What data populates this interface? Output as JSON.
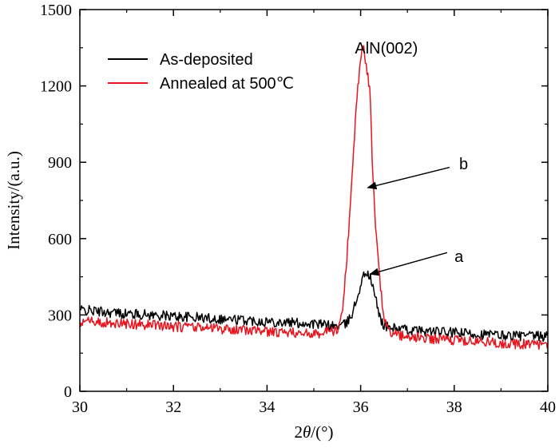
{
  "chart_data": {
    "type": "line",
    "title": "",
    "xlabel": {
      "prefix": "2",
      "theta": "θ",
      "suffix": "/(°)"
    },
    "ylabel": "Intensity/(a.u.)",
    "xlim": [
      30,
      40
    ],
    "ylim": [
      0,
      1500
    ],
    "xticks": [
      30,
      32,
      34,
      36,
      38,
      40
    ],
    "yticks": [
      0,
      300,
      600,
      900,
      1200,
      1500
    ],
    "grid": false,
    "legend_position": "top-left",
    "series": [
      {
        "name": "As-deposited",
        "color": "#000000",
        "noise": 20,
        "points": [
          [
            30,
            320
          ],
          [
            31,
            305
          ],
          [
            32,
            295
          ],
          [
            33,
            285
          ],
          [
            34,
            275
          ],
          [
            35,
            265
          ],
          [
            35.5,
            255
          ],
          [
            35.7,
            265
          ],
          [
            35.8,
            300
          ],
          [
            35.9,
            350
          ],
          [
            36.0,
            420
          ],
          [
            36.1,
            470
          ],
          [
            36.2,
            450
          ],
          [
            36.3,
            380
          ],
          [
            36.4,
            300
          ],
          [
            36.5,
            255
          ],
          [
            37,
            240
          ],
          [
            38,
            230
          ],
          [
            39,
            220
          ],
          [
            40,
            215
          ]
        ]
      },
      {
        "name": "Annealed at 500℃",
        "color": "#e8141e",
        "noise": 20,
        "points": [
          [
            30,
            275
          ],
          [
            31,
            265
          ],
          [
            32,
            255
          ],
          [
            33,
            245
          ],
          [
            34,
            235
          ],
          [
            35,
            225
          ],
          [
            35.5,
            240
          ],
          [
            35.6,
            300
          ],
          [
            35.7,
            500
          ],
          [
            35.8,
            800
          ],
          [
            35.9,
            1100
          ],
          [
            36.0,
            1320
          ],
          [
            36.05,
            1365
          ],
          [
            36.1,
            1310
          ],
          [
            36.2,
            1180
          ],
          [
            36.25,
            900
          ],
          [
            36.3,
            700
          ],
          [
            36.4,
            450
          ],
          [
            36.5,
            280
          ],
          [
            36.6,
            230
          ],
          [
            37,
            215
          ],
          [
            38,
            200
          ],
          [
            39,
            190
          ],
          [
            40,
            180
          ]
        ]
      }
    ],
    "annotations": [
      {
        "text": "AlN(002)",
        "at": [
          36.55,
          1350
        ]
      },
      {
        "text": "b",
        "at": [
          38.2,
          895
        ],
        "arrow_from": [
          37.9,
          880
        ],
        "arrow_to": [
          36.15,
          800
        ]
      },
      {
        "text": "a",
        "at": [
          38.1,
          530
        ],
        "arrow_from": [
          37.85,
          545
        ],
        "arrow_to": [
          36.2,
          460
        ]
      }
    ]
  }
}
